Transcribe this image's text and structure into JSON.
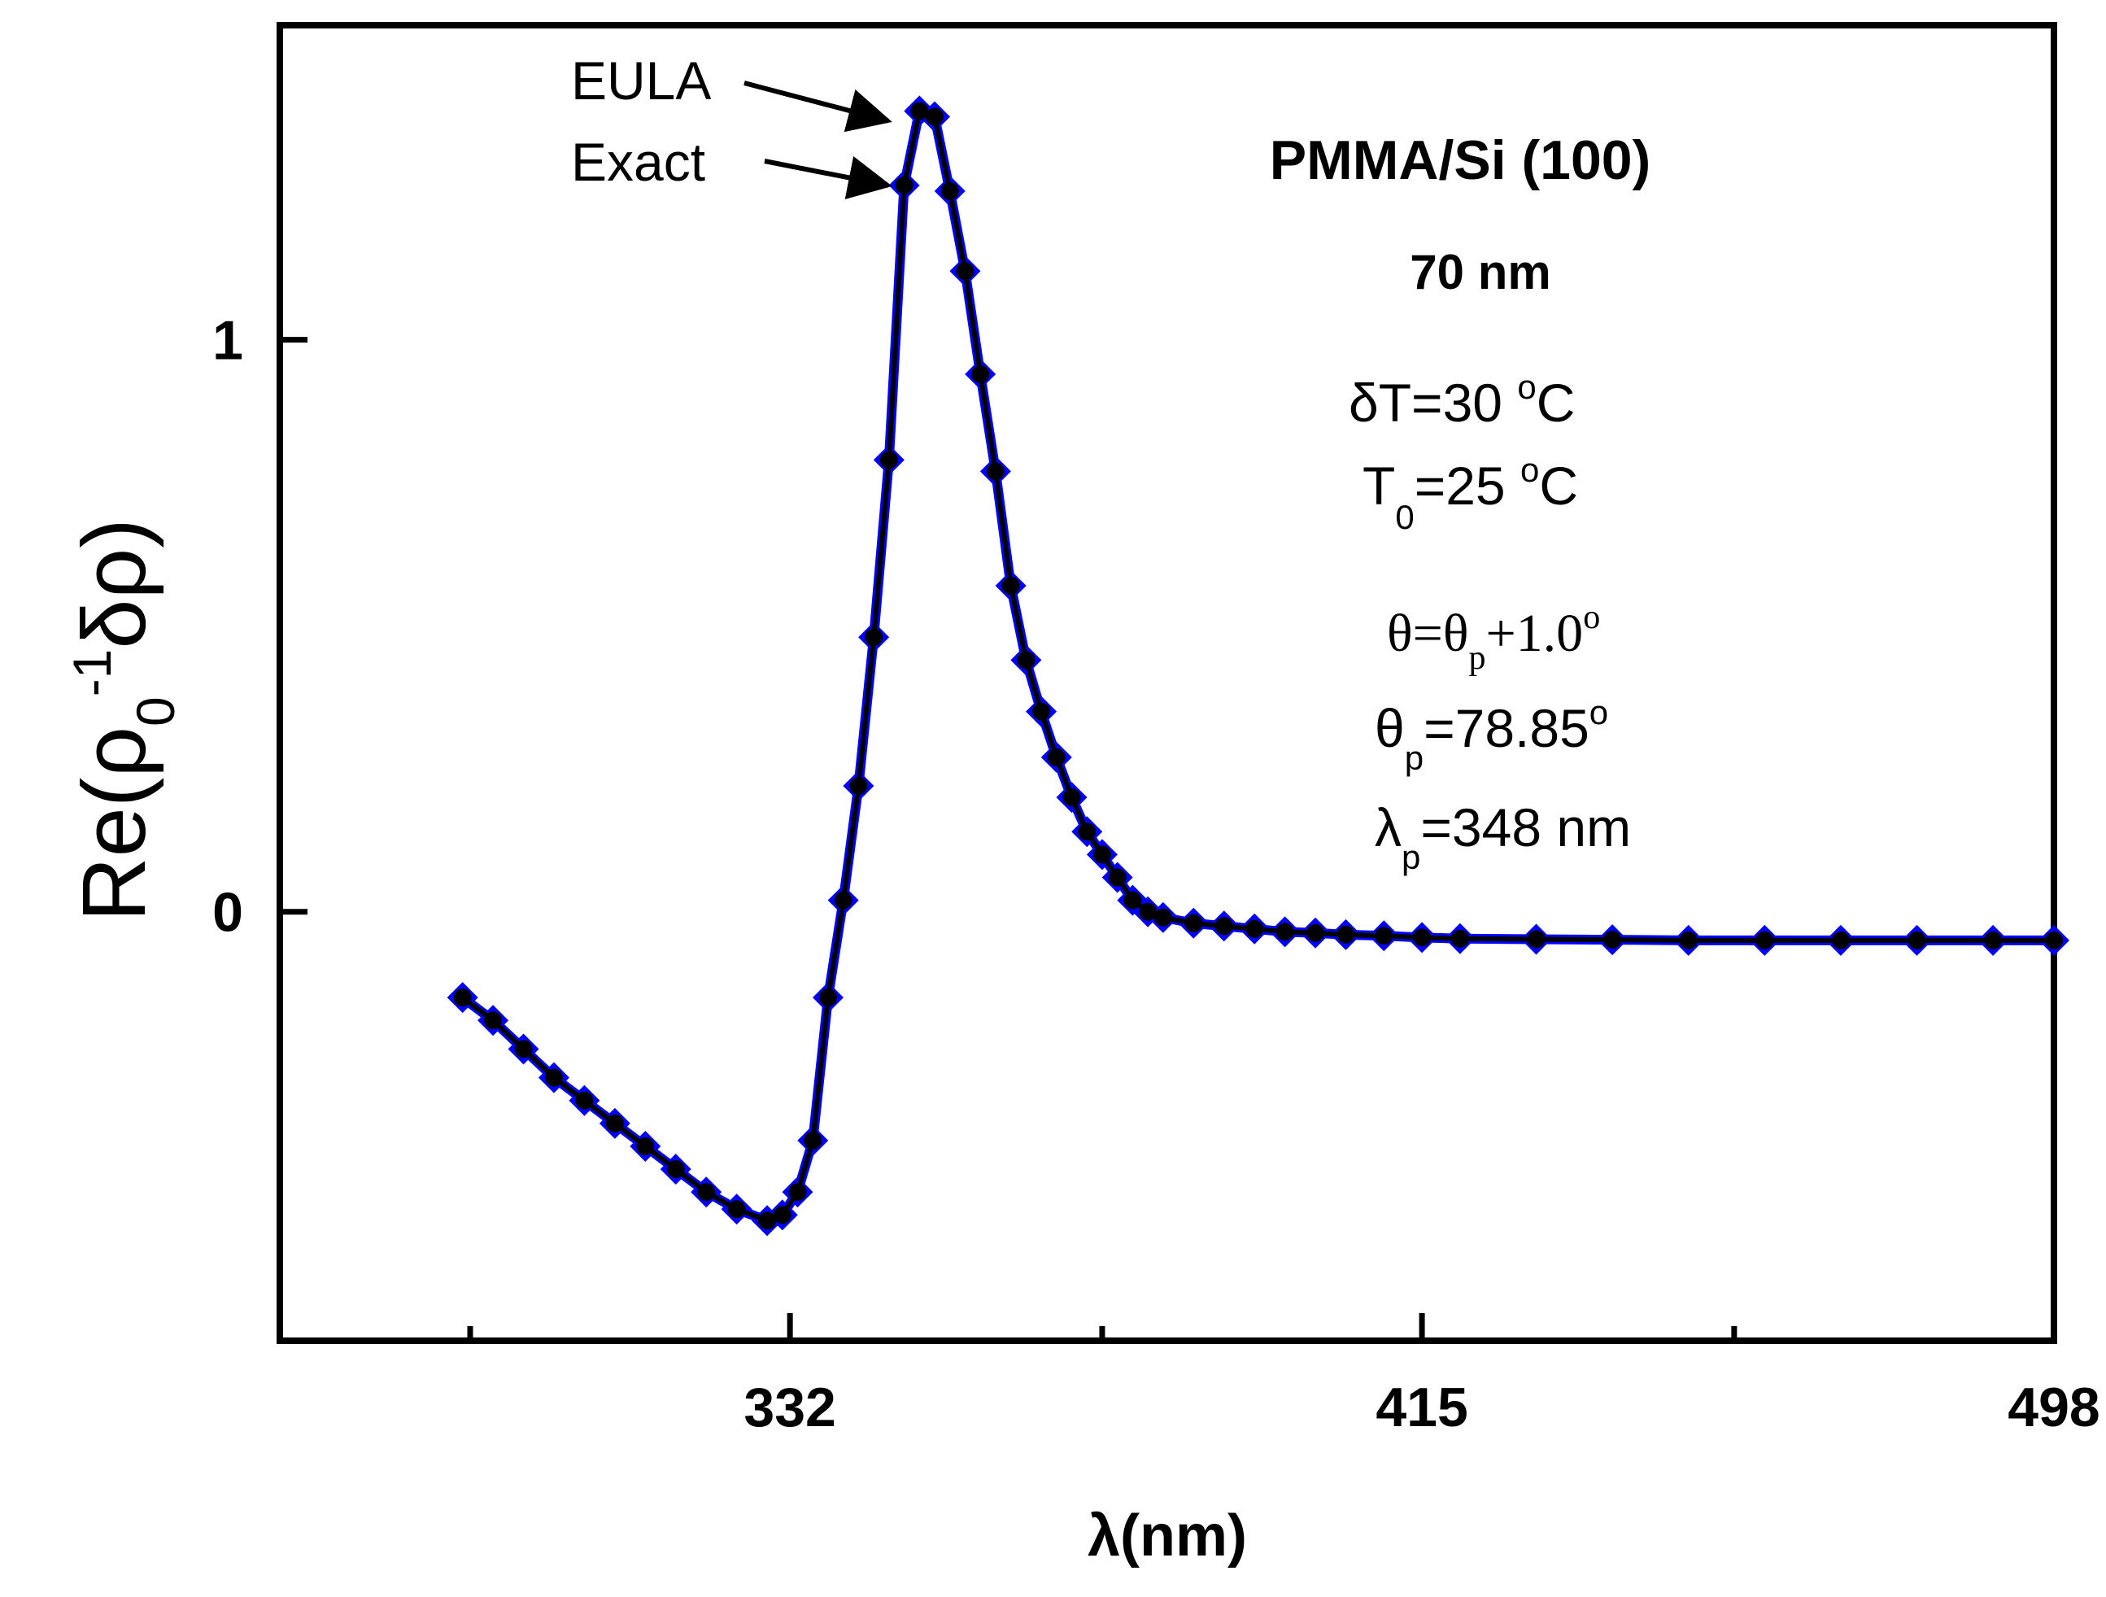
{
  "chart_data": {
    "type": "line",
    "title": "",
    "xlabel": "λ(nm)",
    "ylabel": {
      "prefix": "Re(ρ",
      "sub0": "0",
      "sup": "-1",
      "suffix": "δρ)"
    },
    "xlim": [
      265,
      498
    ],
    "ylim": [
      -0.75,
      1.55
    ],
    "xticks": [
      {
        "value": 332,
        "label": "332"
      },
      {
        "value": 415,
        "label": "415"
      },
      {
        "value": 498,
        "label": "498"
      }
    ],
    "xminor": [
      290,
      373,
      456
    ],
    "yticks": [
      {
        "value": 0,
        "label": "0"
      },
      {
        "value": 1,
        "label": "1"
      }
    ],
    "annotations": {
      "material": "PMMA/Si (100)",
      "thickness": "70 nm",
      "delta_t": {
        "text": "δT=30 ",
        "deg": "o",
        "unit": "C"
      },
      "t0": {
        "base": "T",
        "sub": "0",
        "text": "=25 ",
        "deg": "o",
        "unit": "C"
      },
      "theta": {
        "a": "θ=θ",
        "sub": "p",
        "b": "+1.0",
        "deg": "o"
      },
      "theta_p": {
        "base": "θ",
        "sub": "p",
        "text": "=78.85",
        "deg": "o"
      },
      "lambda_p": {
        "base": "λ",
        "sub": "p",
        "text": "=348 nm"
      }
    },
    "series": [
      {
        "name": "EULA",
        "marker": "circle",
        "color": "#000000",
        "x": [
          289,
          293,
          297,
          301,
          305,
          309,
          313,
          317,
          321,
          325,
          329,
          331,
          333,
          335,
          337,
          339,
          341,
          343,
          345,
          347,
          349,
          351,
          353,
          355,
          357,
          359,
          361,
          363,
          365,
          367,
          369,
          371,
          373,
          375,
          377,
          379,
          381,
          385,
          389,
          393,
          397,
          401,
          405,
          410,
          415,
          420,
          430,
          440,
          450,
          460,
          470,
          480,
          490,
          498
        ],
        "y": [
          -0.15,
          -0.19,
          -0.24,
          -0.29,
          -0.33,
          -0.37,
          -0.41,
          -0.45,
          -0.49,
          -0.52,
          -0.54,
          -0.53,
          -0.49,
          -0.4,
          -0.15,
          0.02,
          0.22,
          0.48,
          0.79,
          1.27,
          1.4,
          1.39,
          1.26,
          1.12,
          0.94,
          0.77,
          0.57,
          0.44,
          0.35,
          0.27,
          0.2,
          0.14,
          0.1,
          0.06,
          0.02,
          0.0,
          -0.01,
          -0.02,
          -0.025,
          -0.03,
          -0.035,
          -0.037,
          -0.04,
          -0.042,
          -0.045,
          -0.047,
          -0.048,
          -0.049,
          -0.05,
          -0.05,
          -0.05,
          -0.05,
          -0.05,
          -0.05
        ]
      },
      {
        "name": "Exact",
        "marker": "diamond",
        "color": "#0000ff",
        "x": [
          289,
          293,
          297,
          301,
          305,
          309,
          313,
          317,
          321,
          325,
          329,
          331,
          333,
          335,
          337,
          339,
          341,
          343,
          345,
          347,
          349,
          351,
          353,
          355,
          357,
          359,
          361,
          363,
          365,
          367,
          369,
          371,
          373,
          375,
          377,
          379,
          381,
          385,
          389,
          393,
          397,
          401,
          405,
          410,
          415,
          420,
          430,
          440,
          450,
          460,
          470,
          480,
          490,
          498
        ],
        "y": [
          -0.15,
          -0.19,
          -0.24,
          -0.29,
          -0.33,
          -0.37,
          -0.41,
          -0.45,
          -0.49,
          -0.52,
          -0.54,
          -0.53,
          -0.49,
          -0.4,
          -0.15,
          0.02,
          0.22,
          0.48,
          0.79,
          1.27,
          1.4,
          1.39,
          1.26,
          1.12,
          0.94,
          0.77,
          0.57,
          0.44,
          0.35,
          0.27,
          0.2,
          0.14,
          0.1,
          0.06,
          0.02,
          0.0,
          -0.01,
          -0.02,
          -0.025,
          -0.03,
          -0.035,
          -0.037,
          -0.04,
          -0.042,
          -0.045,
          -0.047,
          -0.048,
          -0.049,
          -0.05,
          -0.05,
          -0.05,
          -0.05,
          -0.05,
          -0.05
        ]
      }
    ],
    "arrows": [
      {
        "label": "EULA",
        "target_x": 347,
        "target_y": 1.4
      },
      {
        "label": "Exact",
        "target_x": 347,
        "target_y": 1.27
      }
    ]
  }
}
